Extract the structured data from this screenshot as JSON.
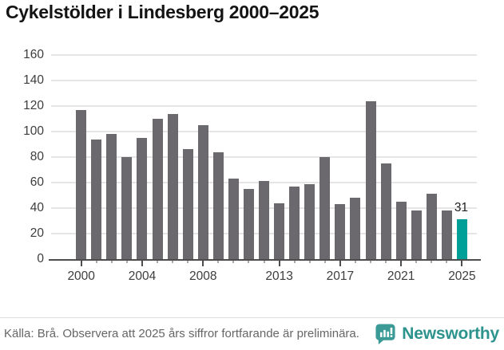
{
  "title": "Cykelstölder i Lindesberg 2000–2025",
  "chart_data": {
    "type": "bar",
    "title": "Cykelstölder i Lindesberg 2000–2025",
    "categories": [
      2000,
      2001,
      2002,
      2003,
      2004,
      2005,
      2006,
      2007,
      2008,
      2009,
      2010,
      2011,
      2012,
      2013,
      2014,
      2015,
      2016,
      2017,
      2018,
      2019,
      2020,
      2021,
      2022,
      2023,
      2024,
      2025
    ],
    "values": [
      117,
      94,
      98,
      80,
      95,
      110,
      114,
      86,
      105,
      84,
      63,
      55,
      61,
      44,
      57,
      59,
      80,
      43,
      48,
      124,
      75,
      45,
      38,
      51,
      38,
      31
    ],
    "xlabel": "",
    "ylabel": "",
    "ylim": [
      0,
      160
    ],
    "ytick_step": 20,
    "xticks": [
      2000,
      2004,
      2008,
      2013,
      2017,
      2021,
      2025
    ],
    "grid": true,
    "legend": "none",
    "bar_color": "#6c696e",
    "highlight_color": "#00a099",
    "highlight_index": 25,
    "data_label": {
      "index": 25,
      "text": "31"
    }
  },
  "footer": {
    "source": "Källa: Brå. Observera att 2025 års siffror fortfarande är preliminära.",
    "logo_wordmark": "Newsworthy",
    "logo_icon": "bar-chart-speech-bubble-icon",
    "logo_color": "#3b9a96"
  }
}
